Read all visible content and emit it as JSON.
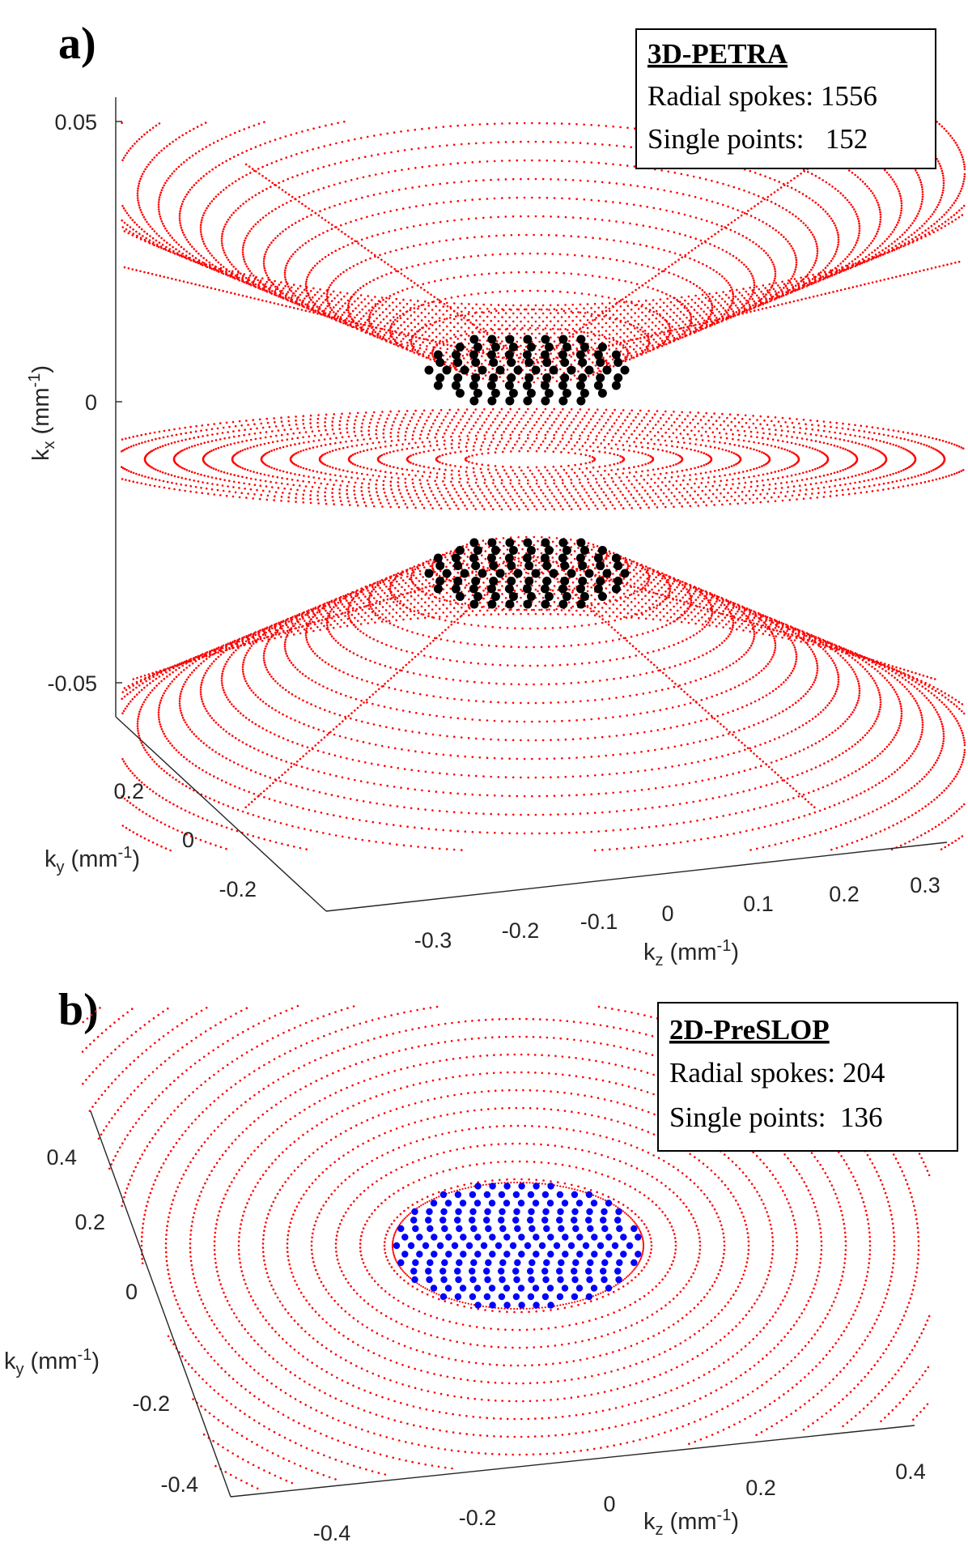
{
  "chart_data": [
    {
      "panel_label": "a)",
      "type": "scatter",
      "view": "3d",
      "legend": {
        "title": "3D-PETRA",
        "line1": "Radial spokes: 1556",
        "line2": "Single points:   152",
        "placement": "top-right"
      },
      "axes": {
        "x": {
          "label_main": "k",
          "label_sub": "x",
          "label_unit": " (mm",
          "label_exp": "-1",
          "label_close": ")",
          "ticks": [
            "0.05",
            "0",
            "-0.05"
          ],
          "range": [
            -0.05,
            0.05
          ]
        },
        "y": {
          "label_main": "k",
          "label_sub": "y",
          "label_unit": " (mm",
          "label_exp": "-1",
          "label_close": ")",
          "ticks": [
            "0.2",
            "0",
            "-0.2"
          ],
          "range": [
            -0.3,
            0.3
          ]
        },
        "z": {
          "label_main": "k",
          "label_sub": "z",
          "label_unit": " (mm",
          "label_exp": "-1",
          "label_close": ")",
          "ticks": [
            "-0.3",
            "-0.2",
            "-0.1",
            "0",
            "0.1",
            "0.2",
            "0.3"
          ],
          "range": [
            -0.35,
            0.35
          ]
        }
      },
      "series": [
        {
          "name": "Radial spokes",
          "count": 1556,
          "color": "#ff0000"
        },
        {
          "name": "Single points",
          "count": 152,
          "color": "#000000"
        }
      ]
    },
    {
      "panel_label": "b)",
      "type": "scatter",
      "view": "3d-oblique",
      "legend": {
        "title": "2D-PreSLOP",
        "line1": "Radial spokes: 204",
        "line2": "Single points:  136",
        "placement": "top-right"
      },
      "axes": {
        "y": {
          "label_main": "k",
          "label_sub": "y",
          "label_unit": " (mm",
          "label_exp": "-1",
          "label_close": ")",
          "ticks": [
            "0.4",
            "0.2",
            "0",
            "-0.2",
            "-0.4"
          ],
          "range": [
            -0.5,
            0.5
          ]
        },
        "z": {
          "label_main": "k",
          "label_sub": "z",
          "label_unit": " (mm",
          "label_exp": "-1",
          "label_close": ")",
          "ticks": [
            "-0.4",
            "-0.2",
            "0",
            "0.2",
            "0.4"
          ],
          "range": [
            -0.5,
            0.5
          ]
        }
      },
      "series": [
        {
          "name": "Radial spokes",
          "count": 204,
          "color": "#ff0000"
        },
        {
          "name": "Single points",
          "count": 136,
          "color": "#0000ff"
        }
      ]
    }
  ]
}
